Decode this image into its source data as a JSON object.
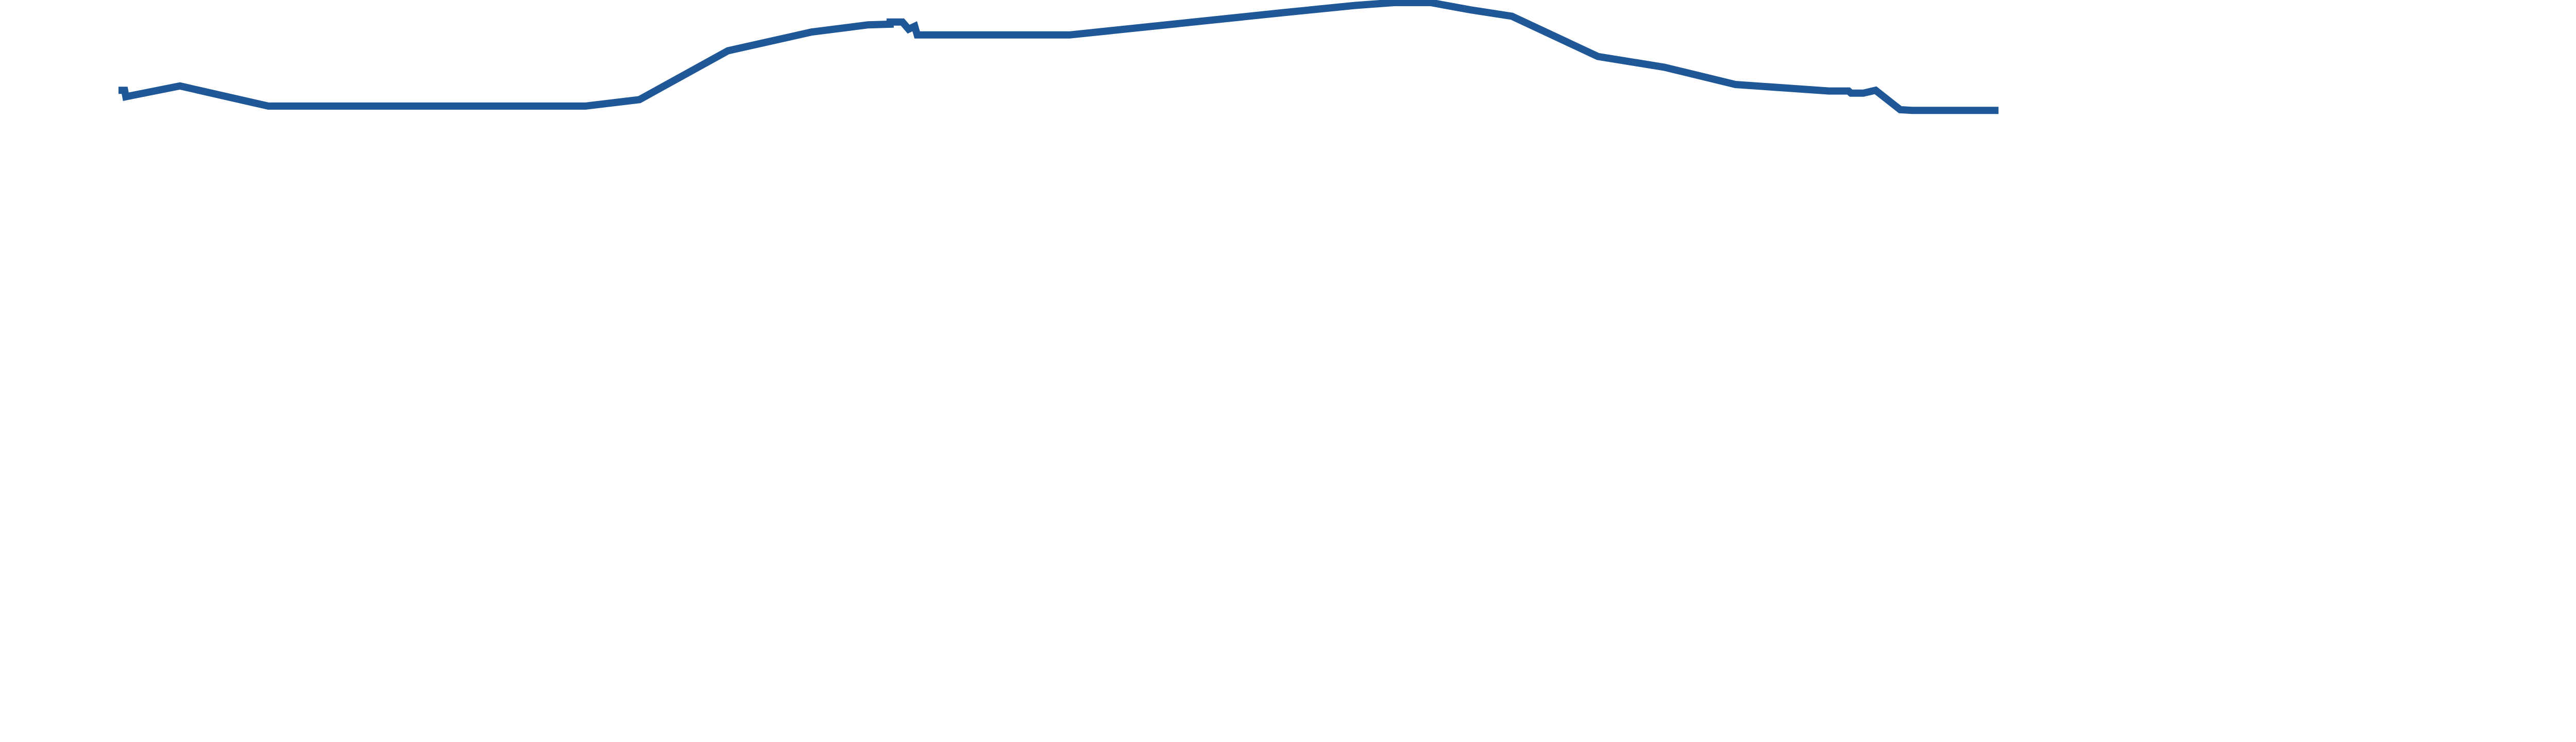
{
  "chart_data": {
    "type": "line",
    "title": "",
    "xlabel": "",
    "ylabel": "",
    "grid": false,
    "legend": "none",
    "xlim": [
      0,
      100
    ],
    "ylim": [
      0,
      100
    ],
    "color": "#1f5797",
    "series": [
      {
        "points": [
          [
            0.0,
            87.8
          ],
          [
            0.25,
            87.8
          ],
          [
            0.3,
            86.9
          ],
          [
            2.5,
            88.4
          ],
          [
            6.1,
            85.6
          ],
          [
            19.0,
            85.6
          ],
          [
            21.2,
            86.5
          ],
          [
            24.8,
            93.3
          ],
          [
            28.2,
            95.9
          ],
          [
            30.5,
            96.9
          ],
          [
            31.4,
            97.0
          ],
          [
            31.4,
            97.3
          ],
          [
            31.9,
            97.3
          ],
          [
            32.15,
            96.3
          ],
          [
            32.4,
            96.7
          ],
          [
            32.5,
            95.5
          ],
          [
            38.7,
            95.5
          ],
          [
            47.4,
            98.6
          ],
          [
            50.3,
            99.6
          ],
          [
            51.9,
            100.0
          ],
          [
            53.4,
            100.0
          ],
          [
            55.0,
            99.0
          ],
          [
            56.7,
            98.1
          ],
          [
            60.2,
            92.5
          ],
          [
            62.9,
            91.0
          ],
          [
            65.8,
            88.6
          ],
          [
            69.6,
            87.7
          ],
          [
            70.4,
            87.7
          ],
          [
            70.5,
            87.4
          ],
          [
            71.0,
            87.4
          ],
          [
            71.5,
            87.8
          ],
          [
            72.5,
            85.1
          ],
          [
            73.0,
            85.0
          ],
          [
            76.5,
            85.0
          ]
        ]
      }
    ]
  }
}
